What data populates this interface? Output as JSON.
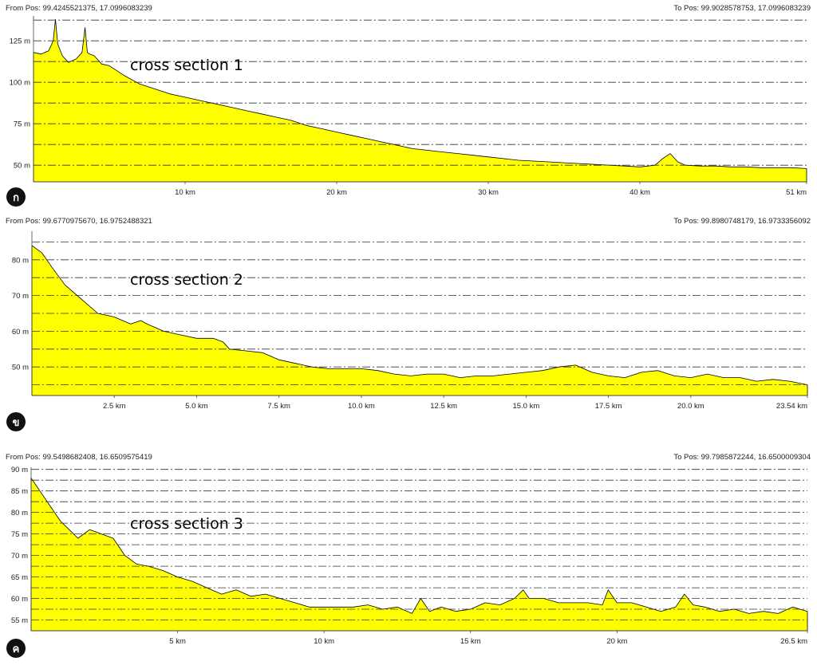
{
  "chart_data": [
    {
      "type": "area",
      "badge": "ก",
      "title": "cross section 1",
      "from_pos": "From Pos: 99.4245521375, 17.0996083239",
      "to_pos": "To Pos: 99.9028578753, 17.0996083239",
      "xlim": [
        0,
        51
      ],
      "ylim": [
        40,
        140
      ],
      "x_ticks": [
        10,
        20,
        30,
        40,
        51
      ],
      "x_tick_labels": [
        "10 km",
        "20 km",
        "30 km",
        "40 km",
        "51 km"
      ],
      "y_ticks": [
        50,
        75,
        100,
        125
      ],
      "y_tick_labels": [
        "50 m",
        "75 m",
        "100 m",
        "125 m"
      ],
      "fill_color": "#ffff00",
      "grid": "dash-dot horizontal",
      "series": [
        {
          "x": [
            0,
            0.5,
            1,
            1.3,
            1.45,
            1.6,
            1.9,
            2.3,
            2.8,
            3.2,
            3.4,
            3.55,
            3.7,
            4,
            4.5,
            5,
            6,
            7,
            8,
            9,
            10,
            11,
            12,
            13,
            14,
            15,
            16,
            17,
            18,
            19,
            20,
            21,
            22,
            23,
            24,
            25,
            26,
            27,
            28,
            29,
            30,
            31,
            32,
            33,
            34,
            35,
            36,
            37,
            38,
            39,
            40,
            41,
            41.5,
            42,
            42.5,
            43,
            44,
            45,
            46,
            47,
            48,
            49,
            50,
            51
          ],
          "y": [
            118,
            117,
            119,
            125,
            138,
            123,
            116,
            112,
            114,
            118,
            133,
            118,
            117,
            116,
            111,
            110,
            104,
            99,
            96,
            93,
            91,
            89,
            87,
            85,
            83,
            81,
            79,
            77,
            74,
            72,
            70,
            68,
            66,
            64,
            62,
            60,
            59,
            58,
            57,
            56,
            55,
            54,
            53,
            52.5,
            52,
            51.5,
            51,
            50.5,
            50,
            49.5,
            49,
            50,
            54,
            57,
            52,
            50,
            49.5,
            49.5,
            49,
            49,
            48.5,
            48.5,
            48.5,
            48
          ]
        }
      ]
    },
    {
      "type": "area",
      "badge": "ข",
      "title": "cross section 2",
      "from_pos": "From Pos: 99.6770975670, 16.9752488321",
      "to_pos": "To Pos: 99.8980748179, 16.9733356092",
      "xlim": [
        0,
        23.54
      ],
      "ylim": [
        42,
        88
      ],
      "x_ticks": [
        2.5,
        5,
        7.5,
        10,
        12.5,
        15,
        17.5,
        20,
        23.54
      ],
      "x_tick_labels": [
        "2.5 km",
        "5.0 km",
        "7.5 km",
        "10.0 km",
        "12.5 km",
        "15.0 km",
        "17.5 km",
        "20.0 km",
        "23.54 km"
      ],
      "y_ticks": [
        50,
        60,
        70,
        80
      ],
      "y_tick_labels": [
        "50 m",
        "60 m",
        "70 m",
        "80 m"
      ],
      "fill_color": "#ffff00",
      "grid": "dash-dot horizontal",
      "series": [
        {
          "x": [
            0,
            0.3,
            0.6,
            1,
            1.5,
            2,
            2.5,
            3,
            3.3,
            3.5,
            4,
            4.5,
            5,
            5.5,
            5.8,
            6,
            6.5,
            7,
            7.5,
            8,
            8.5,
            9,
            9.5,
            10,
            10.5,
            11,
            11.5,
            12,
            12.5,
            13,
            13.5,
            14,
            14.5,
            15,
            15.5,
            16,
            16.5,
            17,
            17.5,
            18,
            18.5,
            19,
            19.5,
            20,
            20.5,
            21,
            21.5,
            22,
            22.5,
            23,
            23.54
          ],
          "y": [
            84,
            82,
            78,
            73,
            69,
            65,
            64,
            62,
            63,
            62,
            60,
            59,
            58,
            58,
            57,
            55,
            54.5,
            54,
            52,
            51,
            50,
            49.5,
            49.5,
            49.5,
            49,
            48,
            47.5,
            48,
            48,
            47,
            47.5,
            47.5,
            48,
            48.5,
            49,
            50,
            50.5,
            48.5,
            47.5,
            47,
            48.5,
            49,
            47.5,
            47,
            48,
            47,
            47,
            46,
            46.5,
            46,
            45
          ]
        }
      ]
    },
    {
      "type": "area",
      "badge": "ค",
      "title": "cross section 3",
      "from_pos": "From Pos: 99.5498682408, 16.6509575419",
      "to_pos": "To Pos: 99.7985872244, 16.6500009304",
      "xlim": [
        0,
        26.5
      ],
      "ylim": [
        52.5,
        90.5
      ],
      "x_ticks": [
        5,
        10,
        15,
        20,
        26.5
      ],
      "x_tick_labels": [
        "5 km",
        "10 km",
        "15 km",
        "20 km",
        "26.5 km"
      ],
      "y_ticks": [
        55,
        60,
        65,
        70,
        75,
        80,
        85,
        90
      ],
      "y_tick_labels": [
        "55 m",
        "60 m",
        "65 m",
        "70 m",
        "75 m",
        "80 m",
        "85 m",
        "90 m"
      ],
      "fill_color": "#ffff00",
      "grid": "dash-dot horizontal",
      "series": [
        {
          "x": [
            0,
            0.3,
            0.6,
            1,
            1.3,
            1.6,
            2,
            2.4,
            2.8,
            3.2,
            3.6,
            4,
            4.5,
            5,
            5.5,
            6,
            6.5,
            7,
            7.5,
            8,
            8.5,
            9,
            9.5,
            10,
            10.5,
            11,
            11.5,
            12,
            12.5,
            13,
            13.3,
            13.6,
            14,
            14.5,
            15,
            15.5,
            16,
            16.5,
            16.8,
            17,
            17.5,
            18,
            18.5,
            19,
            19.5,
            19.7,
            20,
            20.5,
            21,
            21.5,
            22,
            22.3,
            22.6,
            23,
            23.5,
            24,
            24.5,
            25,
            25.5,
            26,
            26.5
          ],
          "y": [
            88,
            85,
            82,
            78,
            76,
            74,
            76,
            75,
            74,
            70,
            68,
            67.5,
            66.5,
            65,
            64,
            62.5,
            61,
            62,
            60.5,
            61,
            60,
            59,
            58,
            58,
            58,
            58,
            58.5,
            57.5,
            58,
            56.5,
            60,
            57,
            58,
            57,
            57.5,
            59,
            58.5,
            60,
            62,
            60,
            60,
            59,
            59,
            59,
            58.5,
            62,
            59,
            59,
            58,
            57,
            58,
            61,
            58.5,
            58,
            57,
            57.5,
            56.5,
            57,
            56.5,
            58,
            57
          ]
        }
      ]
    }
  ]
}
